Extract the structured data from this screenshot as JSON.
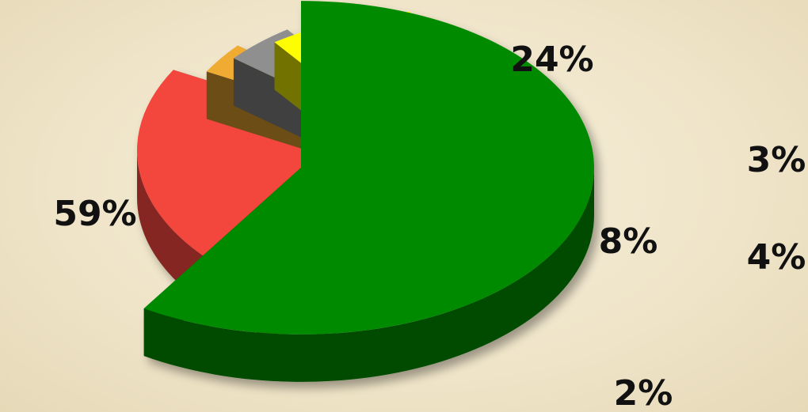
{
  "chart_data": {
    "type": "pie",
    "title": "",
    "style": "3d-exploded",
    "slices": [
      {
        "label": "59%",
        "value": 59,
        "color": "#018a01"
      },
      {
        "label": "24%",
        "value": 24,
        "color": "#f3463c"
      },
      {
        "label": "3%",
        "value": 3,
        "color": "#f0ac33"
      },
      {
        "label": "4%",
        "value": 4,
        "color": "#8f8f8f"
      },
      {
        "label": "8%",
        "value": 8,
        "color": "#fefe00"
      },
      {
        "label": "2%",
        "value": 2,
        "color": "#d3f7d3"
      }
    ]
  }
}
